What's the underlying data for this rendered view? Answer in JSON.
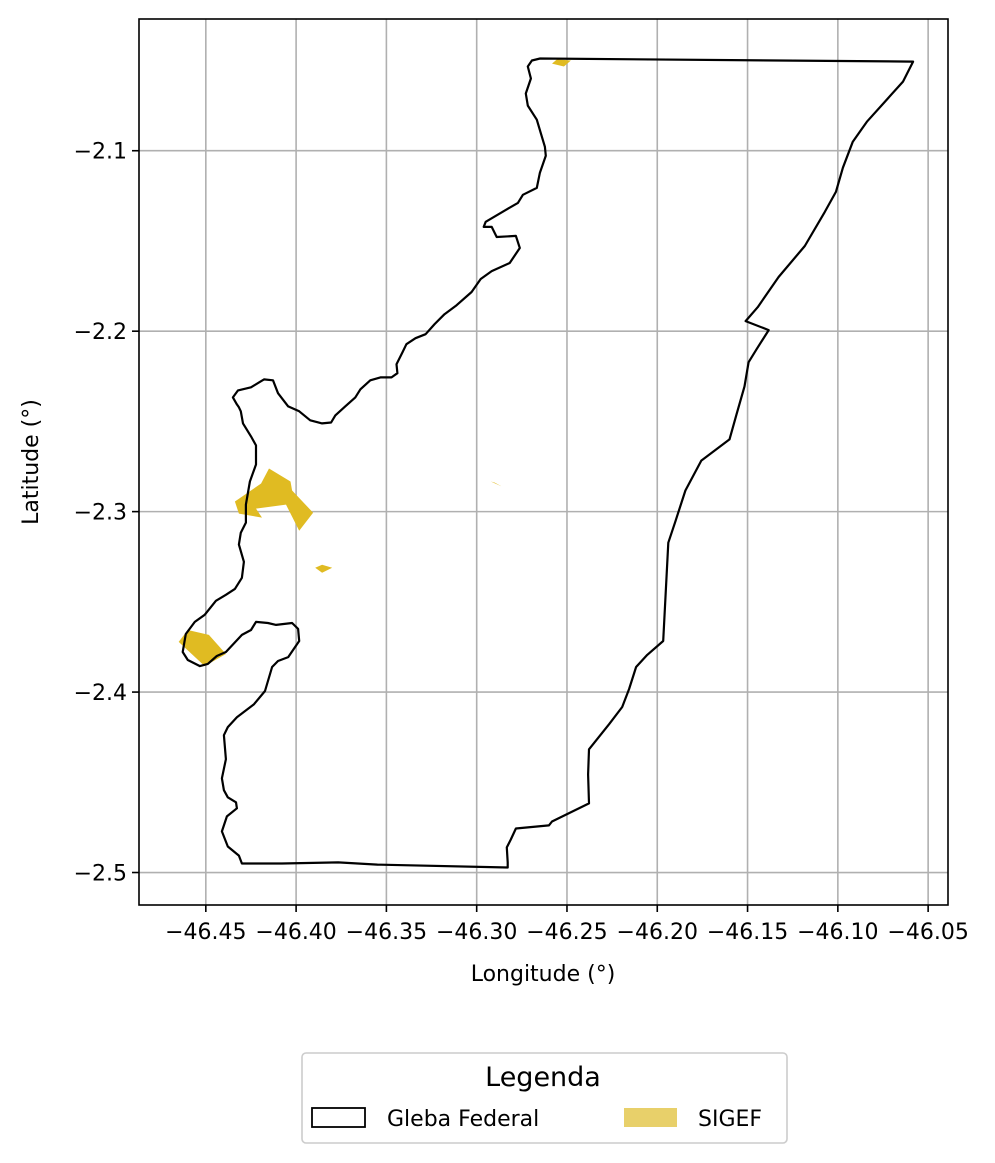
{
  "chart_data": {
    "type": "map",
    "xlabel": "Longitude (°)",
    "ylabel": "Latitude (°)",
    "xlim": [
      -46.487,
      -46.039
    ],
    "ylim": [
      -2.518,
      -2.027
    ],
    "xticks": [
      -46.45,
      -46.4,
      -46.35,
      -46.3,
      -46.25,
      -46.2,
      -46.15,
      -46.1,
      -46.05
    ],
    "xtick_labels": [
      "−46.45",
      "−46.40",
      "−46.35",
      "−46.30",
      "−46.25",
      "−46.20",
      "−46.15",
      "−46.10",
      "−46.05"
    ],
    "yticks": [
      -2.1,
      -2.2,
      -2.3,
      -2.4,
      -2.5
    ],
    "ytick_labels": [
      "−2.1",
      "−2.2",
      "−2.3",
      "−2.4",
      "−2.5"
    ],
    "grid": true,
    "legend": {
      "title": "Legenda",
      "placement": "bottom-center",
      "entries": [
        {
          "label": "Gleba Federal",
          "style": "outline",
          "color": "#000000"
        },
        {
          "label": "SIGEF",
          "style": "fill",
          "color": "#e8d06a"
        }
      ]
    },
    "layers": {
      "gleba_federal": {
        "name": "Gleba Federal",
        "stroke": "#000000",
        "fill": "none",
        "polygon": [
          [
            -46.2649,
            -2.0489
          ],
          [
            -46.0583,
            -2.0506
          ],
          [
            -46.0639,
            -2.0617
          ],
          [
            -46.0739,
            -2.0728
          ],
          [
            -46.0839,
            -2.0839
          ],
          [
            -46.0917,
            -2.095
          ],
          [
            -46.0972,
            -2.1094
          ],
          [
            -46.1011,
            -2.1228
          ],
          [
            -46.1072,
            -2.1339
          ],
          [
            -46.1183,
            -2.1528
          ],
          [
            -46.1328,
            -2.17
          ],
          [
            -46.1444,
            -2.1867
          ],
          [
            -46.1511,
            -2.1944
          ],
          [
            -46.1383,
            -2.1994
          ],
          [
            -46.145,
            -2.21
          ],
          [
            -46.1494,
            -2.2172
          ],
          [
            -46.1517,
            -2.2306
          ],
          [
            -46.1561,
            -2.2461
          ],
          [
            -46.16,
            -2.26
          ],
          [
            -46.1756,
            -2.2717
          ],
          [
            -46.1844,
            -2.2883
          ],
          [
            -46.19,
            -2.3056
          ],
          [
            -46.1939,
            -2.3172
          ],
          [
            -46.1967,
            -2.3717
          ],
          [
            -46.2056,
            -2.3794
          ],
          [
            -46.2117,
            -2.3861
          ],
          [
            -46.2156,
            -2.3983
          ],
          [
            -46.2194,
            -2.4083
          ],
          [
            -46.2267,
            -2.4178
          ],
          [
            -46.2333,
            -2.4261
          ],
          [
            -46.2378,
            -2.4317
          ],
          [
            -46.2383,
            -2.4456
          ],
          [
            -46.2378,
            -2.4617
          ],
          [
            -46.2583,
            -2.4717
          ],
          [
            -46.26,
            -2.4739
          ],
          [
            -46.2783,
            -2.4756
          ],
          [
            -46.2811,
            -2.4817
          ],
          [
            -46.2833,
            -2.4861
          ],
          [
            -46.2828,
            -2.4944
          ],
          [
            -46.2828,
            -2.4972
          ],
          [
            -46.355,
            -2.4956
          ],
          [
            -46.3767,
            -2.4944
          ],
          [
            -46.4078,
            -2.495
          ],
          [
            -46.43,
            -2.495
          ],
          [
            -46.4317,
            -2.4906
          ],
          [
            -46.4378,
            -2.4856
          ],
          [
            -46.4411,
            -2.4772
          ],
          [
            -46.4383,
            -2.4689
          ],
          [
            -46.4328,
            -2.4644
          ],
          [
            -46.4333,
            -2.4611
          ],
          [
            -46.4378,
            -2.4583
          ],
          [
            -46.44,
            -2.4544
          ],
          [
            -46.4411,
            -2.4478
          ],
          [
            -46.4389,
            -2.4372
          ],
          [
            -46.44,
            -2.4239
          ],
          [
            -46.4378,
            -2.4194
          ],
          [
            -46.4328,
            -2.4139
          ],
          [
            -46.4233,
            -2.4067
          ],
          [
            -46.4172,
            -2.3994
          ],
          [
            -46.4133,
            -2.3861
          ],
          [
            -46.41,
            -2.3828
          ],
          [
            -46.4044,
            -2.3806
          ],
          [
            -46.3983,
            -2.3717
          ],
          [
            -46.3989,
            -2.365
          ],
          [
            -46.4022,
            -2.3617
          ],
          [
            -46.4111,
            -2.3628
          ],
          [
            -46.4156,
            -2.3617
          ],
          [
            -46.4222,
            -2.3611
          ],
          [
            -46.425,
            -2.3656
          ],
          [
            -46.43,
            -2.3683
          ],
          [
            -46.4389,
            -2.3778
          ],
          [
            -46.4439,
            -2.38
          ],
          [
            -46.4489,
            -2.3844
          ],
          [
            -46.4533,
            -2.3856
          ],
          [
            -46.46,
            -2.3822
          ],
          [
            -46.4628,
            -2.3778
          ],
          [
            -46.4611,
            -2.3678
          ],
          [
            -46.4561,
            -2.3611
          ],
          [
            -46.4506,
            -2.3572
          ],
          [
            -46.4444,
            -2.3494
          ],
          [
            -46.4389,
            -2.3461
          ],
          [
            -46.4339,
            -2.3428
          ],
          [
            -46.43,
            -2.3367
          ],
          [
            -46.4289,
            -2.3278
          ],
          [
            -46.4317,
            -2.3183
          ],
          [
            -46.4306,
            -2.3117
          ],
          [
            -46.4278,
            -2.3061
          ],
          [
            -46.4278,
            -2.2961
          ],
          [
            -46.4256,
            -2.2833
          ],
          [
            -46.4222,
            -2.2739
          ],
          [
            -46.4222,
            -2.2633
          ],
          [
            -46.425,
            -2.2583
          ],
          [
            -46.4294,
            -2.2511
          ],
          [
            -46.4306,
            -2.2444
          ],
          [
            -46.4317,
            -2.2422
          ],
          [
            -46.4328,
            -2.2406
          ],
          [
            -46.435,
            -2.2367
          ],
          [
            -46.4322,
            -2.2328
          ],
          [
            -46.425,
            -2.2311
          ],
          [
            -46.4178,
            -2.2267
          ],
          [
            -46.4128,
            -2.2272
          ],
          [
            -46.41,
            -2.2344
          ],
          [
            -46.4044,
            -2.2417
          ],
          [
            -46.3983,
            -2.2444
          ],
          [
            -46.3922,
            -2.2494
          ],
          [
            -46.3856,
            -2.2511
          ],
          [
            -46.3806,
            -2.2506
          ],
          [
            -46.3783,
            -2.2467
          ],
          [
            -46.3728,
            -2.2417
          ],
          [
            -46.3672,
            -2.2367
          ],
          [
            -46.3644,
            -2.2322
          ],
          [
            -46.3589,
            -2.2272
          ],
          [
            -46.3533,
            -2.2256
          ],
          [
            -46.3472,
            -2.2256
          ],
          [
            -46.3439,
            -2.2233
          ],
          [
            -46.3444,
            -2.2183
          ],
          [
            -46.3411,
            -2.2117
          ],
          [
            -46.3389,
            -2.2072
          ],
          [
            -46.3339,
            -2.2039
          ],
          [
            -46.3283,
            -2.2017
          ],
          [
            -46.3233,
            -2.1961
          ],
          [
            -46.3178,
            -2.1906
          ],
          [
            -46.3111,
            -2.1856
          ],
          [
            -46.3028,
            -2.1783
          ],
          [
            -46.2978,
            -2.1711
          ],
          [
            -46.2917,
            -2.1667
          ],
          [
            -46.2817,
            -2.1622
          ],
          [
            -46.2761,
            -2.1539
          ],
          [
            -46.2783,
            -2.1472
          ],
          [
            -46.2889,
            -2.1478
          ],
          [
            -46.2917,
            -2.1422
          ],
          [
            -46.2961,
            -2.1422
          ],
          [
            -46.295,
            -2.1394
          ],
          [
            -46.2839,
            -2.1328
          ],
          [
            -46.2772,
            -2.1289
          ],
          [
            -46.2744,
            -2.1244
          ],
          [
            -46.2667,
            -2.1206
          ],
          [
            -46.265,
            -2.1122
          ],
          [
            -46.2617,
            -2.1028
          ],
          [
            -46.2622,
            -2.0978
          ],
          [
            -46.2644,
            -2.0906
          ],
          [
            -46.2667,
            -2.0828
          ],
          [
            -46.2717,
            -2.075
          ],
          [
            -46.2728,
            -2.0683
          ],
          [
            -46.27,
            -2.06
          ],
          [
            -46.2717,
            -2.0533
          ],
          [
            -46.2694,
            -2.05
          ],
          [
            -46.2649,
            -2.0489
          ]
        ]
      },
      "sigef": {
        "name": "SIGEF",
        "fill": "#e0bb22",
        "polygons": [
          [
            [
              -46.415,
              -2.2761
            ],
            [
              -46.4031,
              -2.2833
            ],
            [
              -46.4022,
              -2.2883
            ],
            [
              -46.3906,
              -2.3006
            ],
            [
              -46.3983,
              -2.3106
            ],
            [
              -46.4056,
              -2.2961
            ],
            [
              -46.4222,
              -2.2983
            ],
            [
              -46.4189,
              -2.3033
            ],
            [
              -46.4317,
              -2.3011
            ],
            [
              -46.4339,
              -2.2944
            ],
            [
              -46.4194,
              -2.2844
            ]
          ],
          [
            [
              -46.46,
              -2.3656
            ],
            [
              -46.4483,
              -2.3683
            ],
            [
              -46.4389,
              -2.3789
            ],
            [
              -46.4506,
              -2.3856
            ],
            [
              -46.465,
              -2.3722
            ]
          ],
          [
            [
              -46.3856,
              -2.3294
            ],
            [
              -46.38,
              -2.3311
            ],
            [
              -46.3856,
              -2.3339
            ],
            [
              -46.3894,
              -2.3311
            ]
          ],
          [
            [
              -46.2922,
              -2.2833
            ],
            [
              -46.2861,
              -2.2861
            ],
            [
              -46.29,
              -2.2839
            ]
          ],
          [
            [
              -46.2556,
              -2.0494
            ],
            [
              -46.2478,
              -2.05
            ],
            [
              -46.2517,
              -2.0533
            ],
            [
              -46.2583,
              -2.0517
            ]
          ]
        ]
      }
    }
  }
}
